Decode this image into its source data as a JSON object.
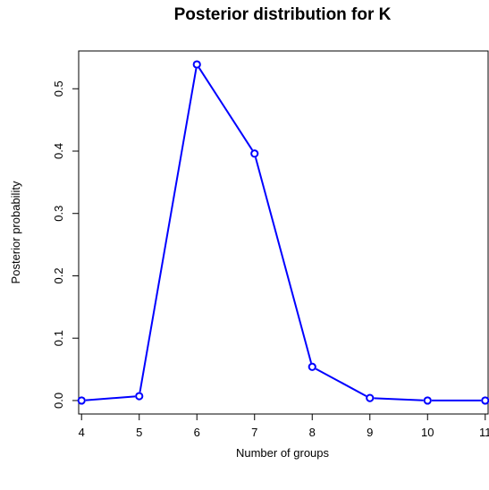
{
  "chart_data": {
    "type": "line",
    "title": "Posterior distribution for K",
    "xlabel": "Number of groups",
    "ylabel": "Posterior probability",
    "x": [
      4,
      5,
      6,
      7,
      8,
      9,
      10,
      11
    ],
    "series": [
      {
        "values": [
          0.0,
          0.007,
          0.539,
          0.396,
          0.054,
          0.004,
          0.0,
          0.0
        ]
      }
    ],
    "xticks": [
      "4",
      "5",
      "6",
      "7",
      "8",
      "9",
      "10",
      "11"
    ],
    "yticks": [
      "0.0",
      "0.1",
      "0.2",
      "0.3",
      "0.4",
      "0.5"
    ],
    "xlim": [
      3.95,
      11.05
    ],
    "ylim": [
      -0.0216,
      0.5606
    ],
    "grid": false,
    "line_color": "#0000ff"
  }
}
